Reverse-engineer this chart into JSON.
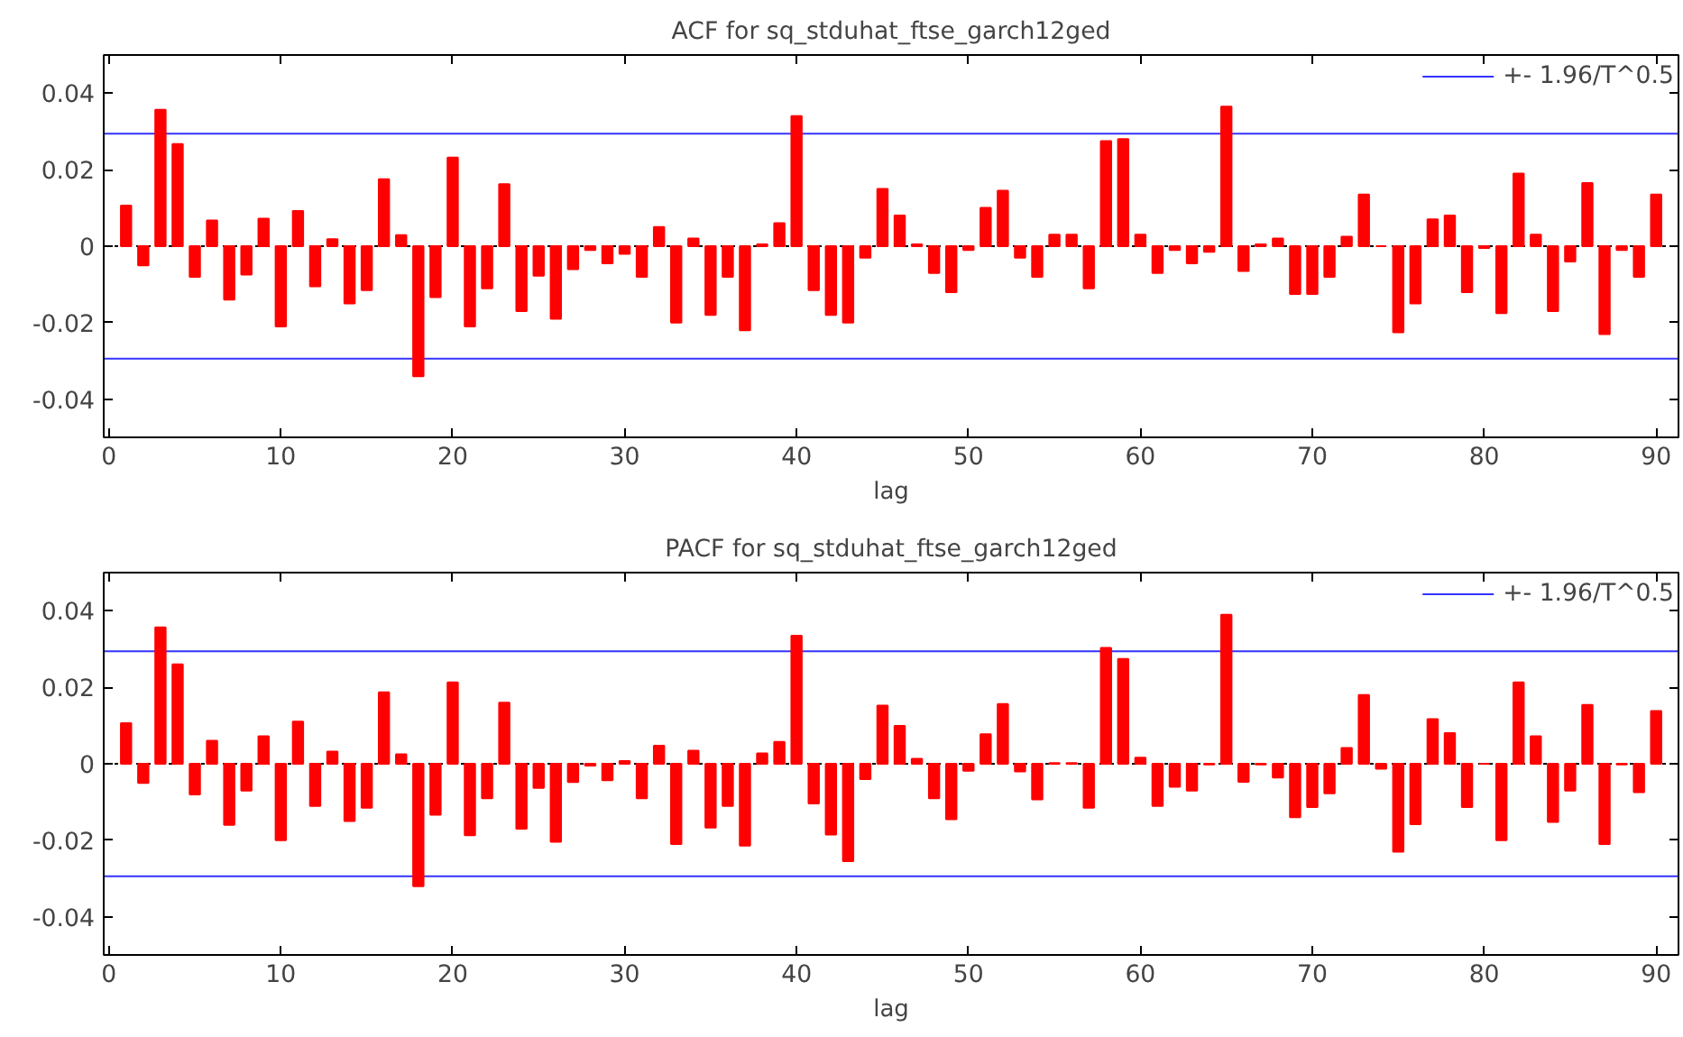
{
  "chart_data": [
    {
      "type": "bar",
      "title": "ACF for sq_stduhat_ftse_garch12ged",
      "xlabel": "lag",
      "x": [
        1,
        2,
        3,
        4,
        5,
        6,
        7,
        8,
        9,
        10,
        11,
        12,
        13,
        14,
        15,
        16,
        17,
        18,
        19,
        20,
        21,
        22,
        23,
        24,
        25,
        26,
        27,
        28,
        29,
        30,
        31,
        32,
        33,
        34,
        35,
        36,
        37,
        38,
        39,
        40,
        41,
        42,
        43,
        44,
        45,
        46,
        47,
        48,
        49,
        50,
        51,
        52,
        53,
        54,
        55,
        56,
        57,
        58,
        59,
        60,
        61,
        62,
        63,
        64,
        65,
        66,
        67,
        68,
        69,
        70,
        71,
        72,
        73,
        74,
        75,
        76,
        77,
        78,
        79,
        80,
        81,
        82,
        83,
        84,
        85,
        86,
        87,
        88,
        89,
        90
      ],
      "series": [
        {
          "color": "#ff0000",
          "values": [
            0.0106,
            -0.005,
            0.0357,
            0.0267,
            -0.008,
            0.0067,
            -0.014,
            -0.0074,
            0.0072,
            -0.021,
            0.0092,
            -0.0105,
            0.0018,
            -0.015,
            -0.0115,
            0.0175,
            0.0029,
            -0.034,
            -0.0133,
            0.0232,
            -0.021,
            -0.011,
            0.0162,
            -0.017,
            -0.0077,
            -0.019,
            -0.006,
            -0.001,
            -0.0045,
            -0.002,
            -0.008,
            0.005,
            -0.02,
            0.002,
            -0.018,
            -0.008,
            -0.022,
            0.0005,
            0.006,
            0.034,
            -0.0115,
            -0.018,
            -0.02,
            -0.003,
            0.015,
            0.008,
            0.0005,
            -0.007,
            -0.012,
            -0.001,
            0.01,
            0.0145,
            -0.003,
            -0.008,
            0.003,
            0.003,
            -0.011,
            0.0275,
            0.028,
            0.003,
            -0.007,
            -0.001,
            -0.0045,
            -0.0015,
            0.0365,
            -0.0065,
            0.0005,
            0.002,
            -0.0125,
            -0.0125,
            -0.008,
            0.0025,
            0.0135,
            0.0,
            -0.0225,
            -0.015,
            0.007,
            0.008,
            -0.012,
            -0.0005,
            -0.0175,
            0.019,
            0.003,
            -0.017,
            -0.004,
            0.0165,
            -0.023,
            -0.001,
            -0.008,
            0.0135
          ]
        }
      ],
      "xlim": [
        -0.3,
        91.3
      ],
      "xticks": [
        0,
        10,
        20,
        30,
        40,
        50,
        60,
        70,
        80,
        90
      ],
      "ylim": [
        -0.05,
        0.05
      ],
      "yticks": [
        {
          "value": -0.04,
          "label": "-0.04"
        },
        {
          "value": -0.02,
          "label": "-0.02"
        },
        0,
        {
          "value": 0.02,
          "label": "0.02"
        },
        {
          "value": 0.04,
          "label": "0.04"
        }
      ],
      "ref_lines": [
        {
          "axis": "y",
          "value": 0.0294,
          "label": "+- 1.96/T^0.5",
          "color": "#0000ff"
        },
        {
          "axis": "y",
          "value": -0.0294,
          "color": "#0000ff"
        },
        {
          "axis": "y",
          "value": 0,
          "color": "#000000",
          "line_style": "dotted"
        }
      ],
      "grid": false,
      "legend": "top right"
    },
    {
      "type": "bar",
      "title": "PACF for sq_stduhat_ftse_garch12ged",
      "xlabel": "lag",
      "x": [
        1,
        2,
        3,
        4,
        5,
        6,
        7,
        8,
        9,
        10,
        11,
        12,
        13,
        14,
        15,
        16,
        17,
        18,
        19,
        20,
        21,
        22,
        23,
        24,
        25,
        26,
        27,
        28,
        29,
        30,
        31,
        32,
        33,
        34,
        35,
        36,
        37,
        38,
        39,
        40,
        41,
        42,
        43,
        44,
        45,
        46,
        47,
        48,
        49,
        50,
        51,
        52,
        53,
        54,
        55,
        56,
        57,
        58,
        59,
        60,
        61,
        62,
        63,
        64,
        65,
        66,
        67,
        68,
        69,
        70,
        71,
        72,
        73,
        74,
        75,
        76,
        77,
        78,
        79,
        80,
        81,
        82,
        83,
        84,
        85,
        86,
        87,
        88,
        89,
        90
      ],
      "series": [
        {
          "color": "#ff0000",
          "values": [
            0.0106,
            -0.005,
            0.0357,
            0.026,
            -0.008,
            0.006,
            -0.016,
            -0.007,
            0.0072,
            -0.02,
            0.011,
            -0.011,
            0.0032,
            -0.015,
            -0.0115,
            0.0187,
            0.0025,
            -0.032,
            -0.0133,
            0.0213,
            -0.0187,
            -0.009,
            0.016,
            -0.017,
            -0.0063,
            -0.0204,
            -0.0048,
            -0.0005,
            -0.0043,
            0.0007,
            -0.009,
            0.0047,
            -0.021,
            0.0034,
            -0.0167,
            -0.011,
            -0.0214,
            0.0027,
            0.0057,
            0.0335,
            -0.0104,
            -0.0185,
            -0.0255,
            -0.004,
            0.0152,
            0.0099,
            0.0013,
            -0.009,
            -0.0145,
            -0.0018,
            0.0077,
            0.0156,
            -0.002,
            -0.0093,
            0.0002,
            0.0002,
            -0.0115,
            0.0303,
            0.0274,
            0.0016,
            -0.011,
            -0.006,
            -0.007,
            -0.0002,
            0.039,
            -0.0047,
            -0.0002,
            -0.0036,
            -0.014,
            -0.0113,
            -0.0077,
            0.0041,
            0.018,
            -0.0013,
            -0.023,
            -0.0158,
            0.0117,
            0.008,
            -0.0113,
            0.0,
            -0.02,
            0.0213,
            0.0072,
            -0.0152,
            -0.007,
            0.0154,
            -0.021,
            -0.0002,
            -0.0074,
            0.0138
          ]
        }
      ],
      "xlim": [
        -0.3,
        91.3
      ],
      "xticks": [
        0,
        10,
        20,
        30,
        40,
        50,
        60,
        70,
        80,
        90
      ],
      "ylim": [
        -0.05,
        0.05
      ],
      "yticks": [
        {
          "value": -0.04,
          "label": "-0.04"
        },
        {
          "value": -0.02,
          "label": "-0.02"
        },
        0,
        {
          "value": 0.02,
          "label": "0.02"
        },
        {
          "value": 0.04,
          "label": "0.04"
        }
      ],
      "ref_lines": [
        {
          "axis": "y",
          "value": 0.0294,
          "label": "+- 1.96/T^0.5",
          "color": "#0000ff"
        },
        {
          "axis": "y",
          "value": -0.0294,
          "color": "#0000ff"
        },
        {
          "axis": "y",
          "value": 0,
          "color": "#000000",
          "line_style": "dotted"
        }
      ],
      "grid": false,
      "legend": "top right"
    }
  ]
}
